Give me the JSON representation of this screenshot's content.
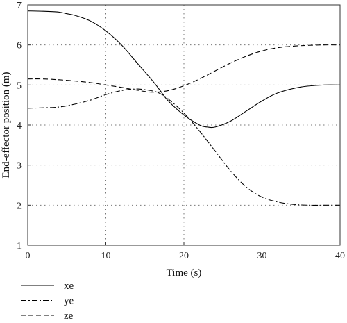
{
  "chart_data": {
    "type": "line",
    "xlabel": "Time (s)",
    "ylabel": "End-effector position (m)",
    "xlim": [
      0,
      40
    ],
    "ylim": [
      1,
      7
    ],
    "xticks": [
      0,
      10,
      20,
      30,
      40
    ],
    "yticks": [
      1,
      2,
      3,
      4,
      5,
      6,
      7
    ],
    "grid": "dotted",
    "legend_position": "below-left",
    "series": [
      {
        "name": "xe",
        "style": "solid",
        "color": "#000000",
        "x": [
          0,
          2,
          4,
          5,
          6,
          8,
          10,
          12,
          14,
          16,
          17,
          18,
          20,
          22,
          23,
          24,
          26,
          28,
          30,
          32,
          35,
          38,
          40
        ],
        "y": [
          6.85,
          6.84,
          6.82,
          6.78,
          6.74,
          6.6,
          6.35,
          6.0,
          5.55,
          5.1,
          4.85,
          4.6,
          4.25,
          4.0,
          3.95,
          3.95,
          4.1,
          4.35,
          4.6,
          4.8,
          4.95,
          5.0,
          5.0
        ]
      },
      {
        "name": "ye",
        "style": "dashdot",
        "color": "#000000",
        "x": [
          0,
          2,
          4,
          6,
          8,
          10,
          12,
          14,
          16,
          17,
          18,
          20,
          22,
          24,
          26,
          28,
          30,
          32,
          34,
          36,
          38,
          40
        ],
        "y": [
          4.42,
          4.43,
          4.45,
          4.52,
          4.62,
          4.76,
          4.86,
          4.9,
          4.85,
          4.78,
          4.65,
          4.3,
          3.85,
          3.35,
          2.85,
          2.45,
          2.2,
          2.08,
          2.02,
          2.0,
          2.0,
          2.0
        ]
      },
      {
        "name": "ze",
        "style": "dashed",
        "color": "#000000",
        "x": [
          0,
          2,
          4,
          6,
          8,
          10,
          12,
          14,
          16,
          18,
          20,
          22,
          24,
          26,
          28,
          30,
          32,
          34,
          36,
          38,
          40
        ],
        "y": [
          5.15,
          5.15,
          5.13,
          5.1,
          5.06,
          5.0,
          4.94,
          4.87,
          4.82,
          4.86,
          4.98,
          5.15,
          5.35,
          5.55,
          5.72,
          5.85,
          5.93,
          5.97,
          5.99,
          6.0,
          6.0
        ]
      }
    ]
  }
}
